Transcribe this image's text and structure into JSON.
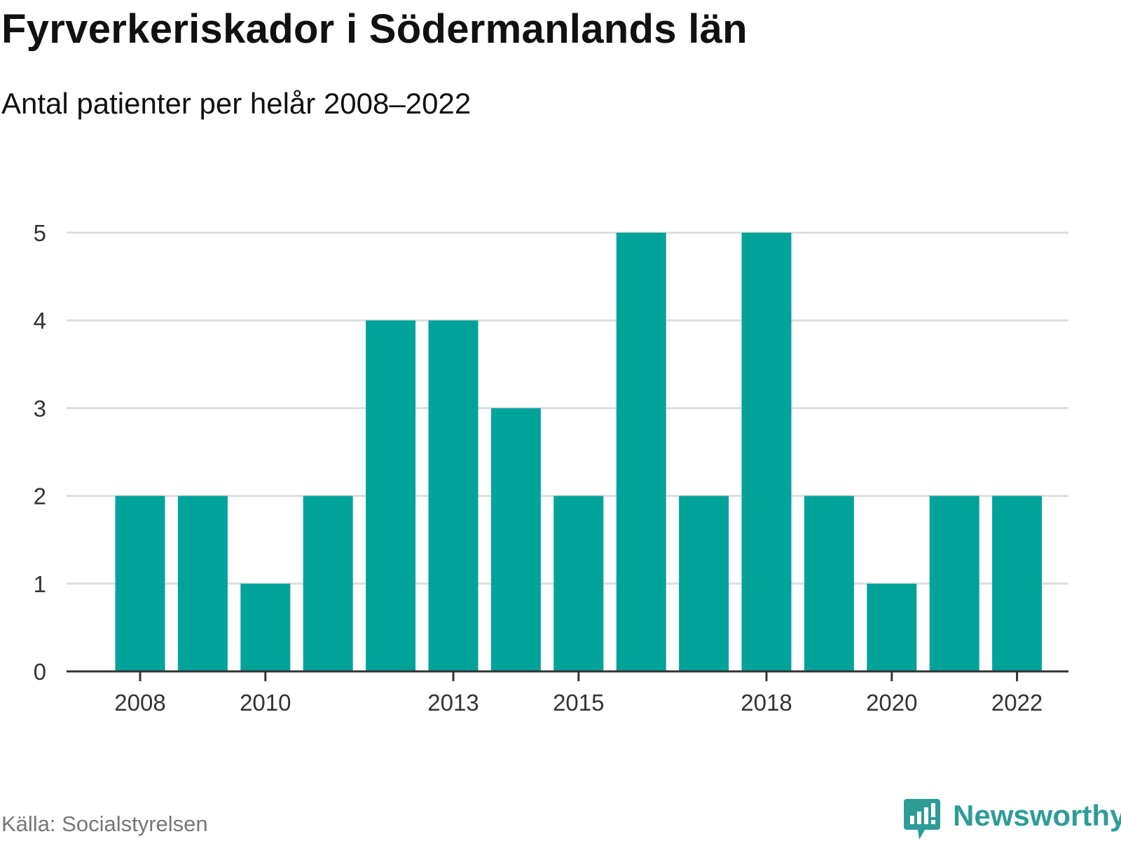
{
  "title": "Fyrverkeriskador i Södermanlands län",
  "subtitle": "Antal patienter per helår 2008–2022",
  "source": "Källa: Socialstyrelsen",
  "brand": {
    "name": "Newsworthy",
    "icon": "newsworthy-logo-icon",
    "color": "#2f9c96"
  },
  "chart_data": {
    "type": "bar",
    "categories": [
      "2008",
      "2009",
      "2010",
      "2011",
      "2012",
      "2013",
      "2014",
      "2015",
      "2016",
      "2017",
      "2018",
      "2019",
      "2020",
      "2021",
      "2022"
    ],
    "values": [
      2,
      2,
      1,
      2,
      4,
      4,
      3,
      2,
      5,
      2,
      5,
      2,
      1,
      2,
      2
    ],
    "x_tick_labels": [
      "2008",
      "2010",
      "2013",
      "2015",
      "2018",
      "2020",
      "2022"
    ],
    "y_ticks": [
      0,
      1,
      2,
      3,
      4,
      5
    ],
    "ylim": [
      0,
      5
    ],
    "grid": true,
    "bar_color": "#00a39a",
    "grid_color": "#dddddd",
    "axis_color": "#333333"
  }
}
